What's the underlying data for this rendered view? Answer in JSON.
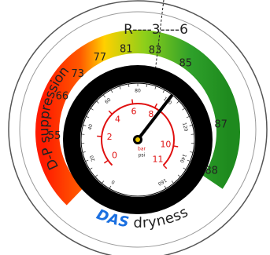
{
  "top_scale": "R----3----6",
  "left_label": "D-P suppression",
  "bottom_label": {
    "brand": "DAS",
    "text": "dryness"
  },
  "outer_scale": [
    55,
    66,
    73,
    77,
    81,
    83,
    85,
    87,
    88
  ],
  "bar_scale": [
    0,
    2,
    4,
    6,
    8,
    10,
    11
  ],
  "psi_scale": [
    0,
    20,
    40,
    60,
    80,
    100,
    120,
    140,
    160
  ],
  "units": {
    "bar": "bar",
    "psi": "psi"
  }
}
